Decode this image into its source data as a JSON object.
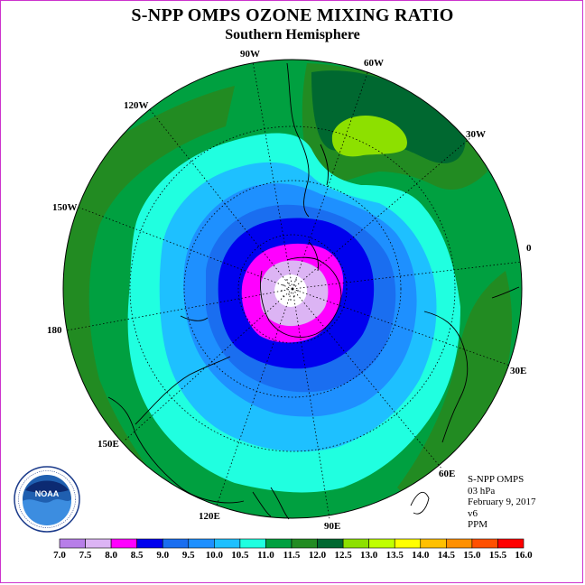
{
  "title": "S-NPP OMPS OZONE MIXING RATIO",
  "subtitle": "Southern Hemisphere",
  "longitude_labels": [
    {
      "id": "lon-90w",
      "text": "90W"
    },
    {
      "id": "lon-60w",
      "text": "60W"
    },
    {
      "id": "lon-30w",
      "text": "30W"
    },
    {
      "id": "lon-0",
      "text": "0"
    },
    {
      "id": "lon-30e",
      "text": "30E"
    },
    {
      "id": "lon-60e",
      "text": "60E"
    },
    {
      "id": "lon-90e",
      "text": "90E"
    },
    {
      "id": "lon-120e",
      "text": "120E"
    },
    {
      "id": "lon-150e",
      "text": "150E"
    },
    {
      "id": "lon-180",
      "text": "180"
    },
    {
      "id": "lon-150w",
      "text": "150W"
    },
    {
      "id": "lon-120w",
      "text": "120W"
    }
  ],
  "info": {
    "instrument": "S-NPP OMPS",
    "level": "03 hPa",
    "date": "February 9, 2017",
    "version": "v6",
    "units": "PPM"
  },
  "logo": {
    "text": "NOAA",
    "ring_text": "NATIONAL OCEANIC AND ATMOSPHERIC ADMINISTRATION · U.S. DEPARTMENT OF COMMERCE"
  },
  "legend": {
    "ticks": [
      "7.0",
      "7.5",
      "8.0",
      "8.5",
      "9.0",
      "9.5",
      "10.0",
      "10.5",
      "11.0",
      "11.5",
      "12.0",
      "12.5",
      "13.0",
      "13.5",
      "14.0",
      "14.5",
      "15.0",
      "15.5",
      "16.0"
    ],
    "colors": [
      "#b77ee8",
      "#dcb4f4",
      "#ff00ff",
      "#0000ee",
      "#1a6ef0",
      "#1e90ff",
      "#1ec0ff",
      "#20ffe0",
      "#00a040",
      "#228b22",
      "#006830",
      "#8de000",
      "#c0ff00",
      "#ffff00",
      "#ffc000",
      "#ff9000",
      "#ff5000",
      "#ff0000",
      "#8b4513"
    ]
  },
  "map_colors": {
    "c11_0": "#00a040",
    "c11_5": "#228b22",
    "c12_0": "#006830",
    "c12_5": "#8de000",
    "c10_5": "#20ffe0",
    "c10_0": "#1ec0ff",
    "c9_5": "#1e90ff",
    "c9_0": "#1a6ef0",
    "c8_5": "#0000ee",
    "c8_0": "#ff00ff",
    "c7_5": "#dcb4f4",
    "c7_0": "#ffffff"
  }
}
